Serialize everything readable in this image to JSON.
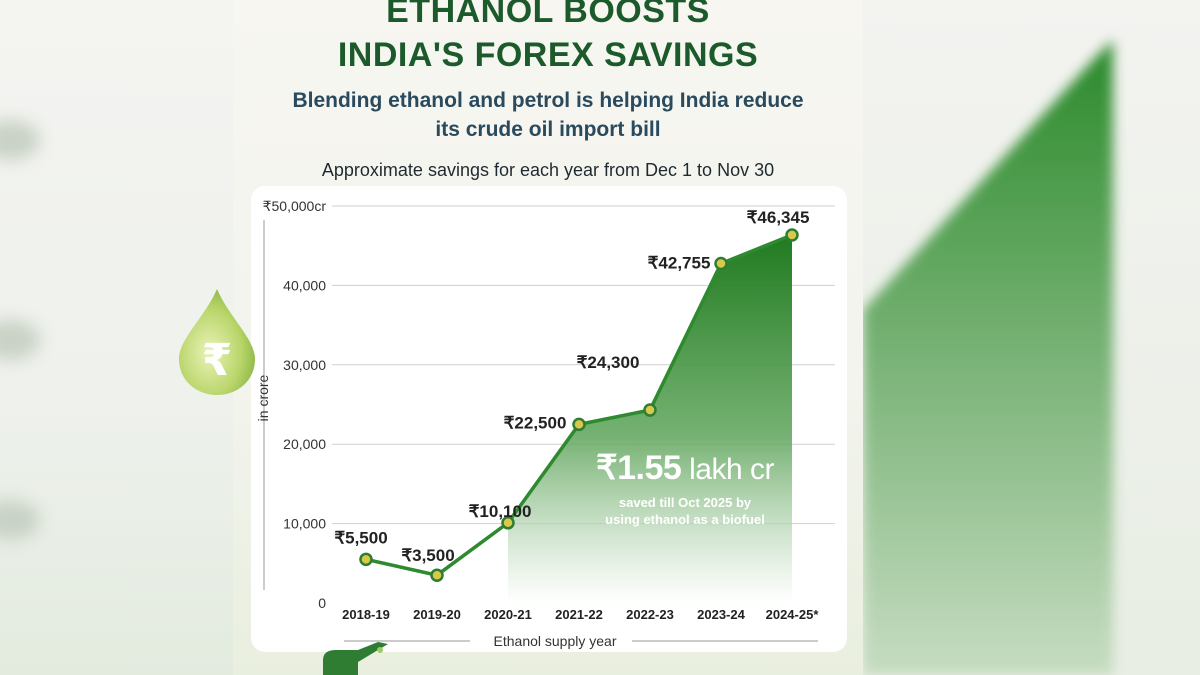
{
  "header": {
    "title_line1": "ETHANOL BOOSTS",
    "title_line2": "INDIA'S FOREX SAVINGS",
    "subtitle_line1": "Blending ethanol and petrol is helping India reduce",
    "subtitle_line2": "its crude oil import bill",
    "note": "Approximate savings for each year from Dec 1 to Nov 30"
  },
  "chart_data": {
    "type": "area",
    "title": "ETHANOL BOOSTS INDIA'S FOREX SAVINGS",
    "subtitle": "Approximate savings for each year from Dec 1 to Nov 30",
    "xlabel": "Ethanol supply year",
    "ylabel": "in crore",
    "categories": [
      "2018-19",
      "2019-20",
      "2020-21",
      "2021-22",
      "2022-23",
      "2023-24",
      "2024-25*"
    ],
    "values": [
      5500,
      3500,
      10100,
      22500,
      24300,
      42755,
      46345
    ],
    "value_labels": [
      "₹5,500",
      "₹3,500",
      "₹10,100",
      "₹22,500",
      "₹24,300",
      "₹42,755",
      "₹46,345"
    ],
    "ylim": [
      0,
      50000
    ],
    "yticks": [
      0,
      10000,
      20000,
      30000,
      40000,
      50000
    ],
    "ytick_labels": [
      "0",
      "10,000",
      "20,000",
      "30,000",
      "40,000",
      "₹50,000cr"
    ],
    "grid": true,
    "colors": {
      "line": "#2e8a2e",
      "fill": "#1f7a1f",
      "marker_fill": "#d9c94a",
      "marker_stroke": "#2e7d32"
    }
  },
  "callout": {
    "amount": "₹1.55",
    "unit": " lakh cr",
    "text_line1": "saved till Oct 2025 by",
    "text_line2": "using ethanol as a biofuel"
  },
  "icons": {
    "drop": "rupee-drop-icon",
    "pump": "fuel-pump-icon"
  },
  "colors": {
    "title": "#1c5a2c",
    "subtitle": "#2a4a5e",
    "card": "#ffffff"
  }
}
